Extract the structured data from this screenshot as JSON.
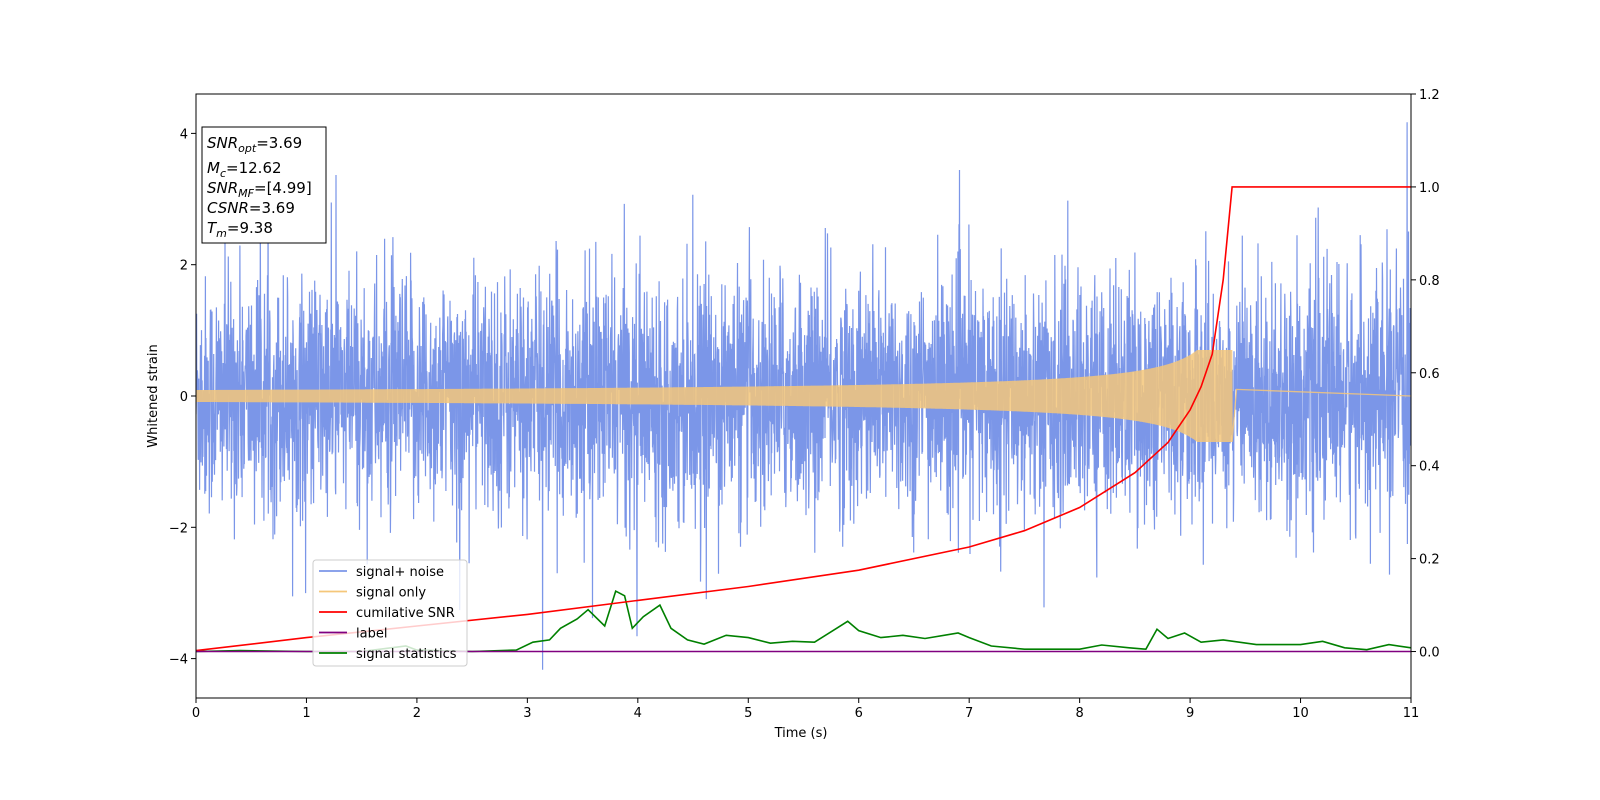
{
  "chart_data": {
    "type": "line",
    "xlabel": "Time (s)",
    "ylabel": "Whitened strain",
    "xlim": [
      0,
      11
    ],
    "ylim": [
      -4.6,
      4.6
    ],
    "ylim_right": [
      -0.1,
      1.2
    ],
    "x_ticks": [
      "0",
      "1",
      "2",
      "3",
      "4",
      "5",
      "6",
      "7",
      "8",
      "9",
      "10",
      "11"
    ],
    "y_ticks": [
      "-4",
      "-2",
      "0",
      "2",
      "4"
    ],
    "y_ticks_right": [
      "0.0",
      "0.2",
      "0.4",
      "0.6",
      "0.8",
      "1.0",
      "1.2"
    ],
    "grid": false,
    "legend_position": "lower-left",
    "stats_box": {
      "lines": [
        {
          "name": "SNR",
          "sub": "opt",
          "value": "=3.69"
        },
        {
          "name": "M",
          "sub": "c",
          "value": "=12.62"
        },
        {
          "name": "SNR",
          "sub": "MF",
          "value": "=[4.99]"
        },
        {
          "name": "CSNR",
          "sub": "",
          "value": "=3.69"
        },
        {
          "name": "T",
          "sub": "m",
          "value": "=9.38"
        }
      ]
    },
    "series": [
      {
        "name": "signal+ noise",
        "axis": "left",
        "color": "#7b96e8",
        "stats": {
          "typical_abs": 1.4,
          "max": 4.17,
          "min": -4.17
        }
      },
      {
        "name": "signal only",
        "axis": "left",
        "color": "#f5c77a",
        "merger_time": 9.38,
        "peak_amplitude": 0.7
      },
      {
        "name": "cumilative SNR",
        "axis": "right",
        "color": "#ff0000",
        "points": [
          [
            0,
            0.002
          ],
          [
            1,
            0.03
          ],
          [
            2,
            0.055
          ],
          [
            3,
            0.08
          ],
          [
            4,
            0.11
          ],
          [
            5,
            0.14
          ],
          [
            6,
            0.175
          ],
          [
            7,
            0.225
          ],
          [
            7.5,
            0.26
          ],
          [
            8,
            0.31
          ],
          [
            8.5,
            0.385
          ],
          [
            8.8,
            0.45
          ],
          [
            9.0,
            0.52
          ],
          [
            9.1,
            0.57
          ],
          [
            9.2,
            0.64
          ],
          [
            9.3,
            0.8
          ],
          [
            9.38,
            1.0
          ],
          [
            11,
            1.0
          ]
        ]
      },
      {
        "name": "label",
        "axis": "right",
        "color": "#800080",
        "points": [
          [
            0,
            0.0
          ],
          [
            11,
            0.0
          ]
        ]
      },
      {
        "name": "signal statistics",
        "axis": "right",
        "color": "#008000",
        "points": [
          [
            0,
            0.0
          ],
          [
            0.4,
            0.002
          ],
          [
            1,
            0.0
          ],
          [
            1.5,
            0.0
          ],
          [
            1.9,
            0.012
          ],
          [
            2,
            0.003
          ],
          [
            2.5,
            0.0
          ],
          [
            2.9,
            0.003
          ],
          [
            3.05,
            0.02
          ],
          [
            3.2,
            0.025
          ],
          [
            3.3,
            0.05
          ],
          [
            3.45,
            0.07
          ],
          [
            3.55,
            0.09
          ],
          [
            3.7,
            0.055
          ],
          [
            3.8,
            0.13
          ],
          [
            3.88,
            0.12
          ],
          [
            3.95,
            0.05
          ],
          [
            4.05,
            0.075
          ],
          [
            4.2,
            0.1
          ],
          [
            4.3,
            0.05
          ],
          [
            4.45,
            0.025
          ],
          [
            4.6,
            0.016
          ],
          [
            4.8,
            0.035
          ],
          [
            5.0,
            0.03
          ],
          [
            5.2,
            0.018
          ],
          [
            5.4,
            0.022
          ],
          [
            5.6,
            0.02
          ],
          [
            5.8,
            0.05
          ],
          [
            5.9,
            0.065
          ],
          [
            6.0,
            0.045
          ],
          [
            6.2,
            0.03
          ],
          [
            6.4,
            0.035
          ],
          [
            6.6,
            0.028
          ],
          [
            6.9,
            0.04
          ],
          [
            7.0,
            0.03
          ],
          [
            7.2,
            0.012
          ],
          [
            7.5,
            0.005
          ],
          [
            8.0,
            0.005
          ],
          [
            8.2,
            0.014
          ],
          [
            8.45,
            0.008
          ],
          [
            8.6,
            0.005
          ],
          [
            8.7,
            0.048
          ],
          [
            8.8,
            0.028
          ],
          [
            8.95,
            0.04
          ],
          [
            9.1,
            0.02
          ],
          [
            9.3,
            0.025
          ],
          [
            9.6,
            0.015
          ],
          [
            10.0,
            0.015
          ],
          [
            10.2,
            0.022
          ],
          [
            10.4,
            0.008
          ],
          [
            10.6,
            0.004
          ],
          [
            10.8,
            0.015
          ],
          [
            11,
            0.008
          ]
        ]
      }
    ]
  }
}
